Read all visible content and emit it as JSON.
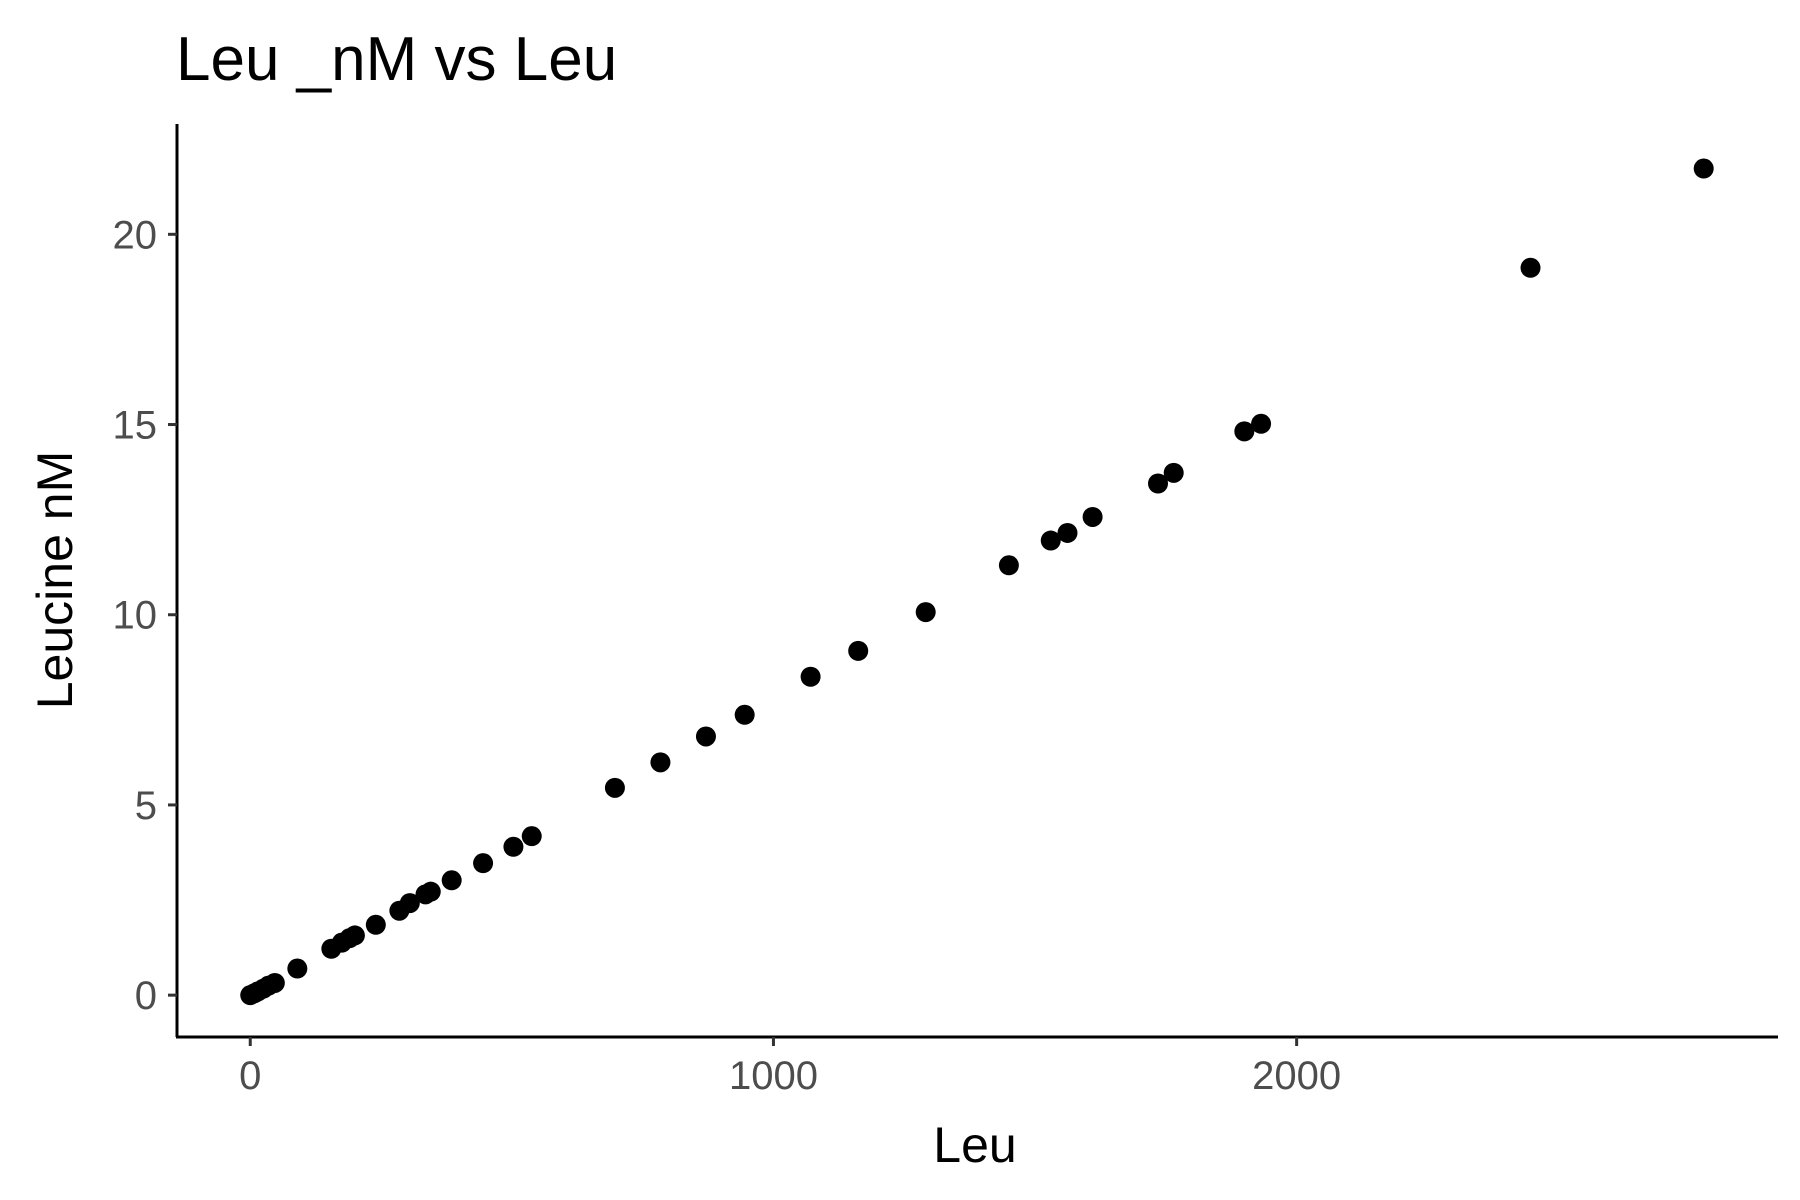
{
  "chart_data": {
    "type": "scatter",
    "title": "Leu _nM vs Leu",
    "xlabel": "Leu",
    "ylabel": "Leucine nM",
    "xlim": [
      -140,
      2920
    ],
    "ylim": [
      -1.1,
      22.9
    ],
    "xticks": [
      0,
      1000,
      2000
    ],
    "yticks": [
      0,
      5,
      10,
      15,
      20
    ],
    "grid": false,
    "point_color": "#000000",
    "points": [
      {
        "x": 0,
        "y": 0.0
      },
      {
        "x": 8,
        "y": 0.05
      },
      {
        "x": 15,
        "y": 0.1
      },
      {
        "x": 25,
        "y": 0.17
      },
      {
        "x": 35,
        "y": 0.25
      },
      {
        "x": 47,
        "y": 0.32
      },
      {
        "x": 90,
        "y": 0.7
      },
      {
        "x": 155,
        "y": 1.22
      },
      {
        "x": 175,
        "y": 1.38
      },
      {
        "x": 190,
        "y": 1.5
      },
      {
        "x": 200,
        "y": 1.57
      },
      {
        "x": 240,
        "y": 1.85
      },
      {
        "x": 285,
        "y": 2.22
      },
      {
        "x": 305,
        "y": 2.42
      },
      {
        "x": 335,
        "y": 2.65
      },
      {
        "x": 345,
        "y": 2.72
      },
      {
        "x": 385,
        "y": 3.02
      },
      {
        "x": 445,
        "y": 3.47
      },
      {
        "x": 503,
        "y": 3.9
      },
      {
        "x": 538,
        "y": 4.18
      },
      {
        "x": 697,
        "y": 5.45
      },
      {
        "x": 784,
        "y": 6.12
      },
      {
        "x": 871,
        "y": 6.8
      },
      {
        "x": 945,
        "y": 7.37
      },
      {
        "x": 1071,
        "y": 8.37
      },
      {
        "x": 1162,
        "y": 9.05
      },
      {
        "x": 1291,
        "y": 10.07
      },
      {
        "x": 1450,
        "y": 11.3
      },
      {
        "x": 1530,
        "y": 11.95
      },
      {
        "x": 1562,
        "y": 12.15
      },
      {
        "x": 1610,
        "y": 12.57
      },
      {
        "x": 1735,
        "y": 13.45
      },
      {
        "x": 1765,
        "y": 13.73
      },
      {
        "x": 1900,
        "y": 14.82
      },
      {
        "x": 1932,
        "y": 15.02
      },
      {
        "x": 2447,
        "y": 19.12
      },
      {
        "x": 2778,
        "y": 21.73
      }
    ]
  }
}
